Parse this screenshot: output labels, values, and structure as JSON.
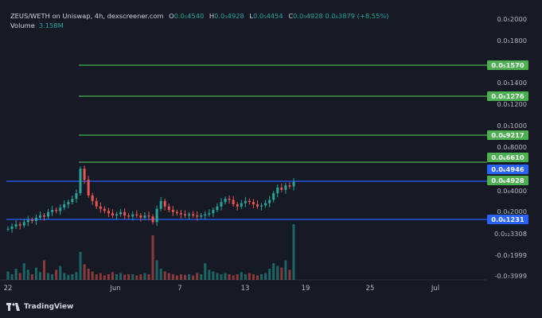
{
  "header": {
    "pair": "ZEUS/WETH on Uniswap, 4h, dexscreener.com",
    "open_key": "O",
    "open": "0.0₅4540",
    "high_key": "H",
    "high": "0.0₅4928",
    "low_key": "L",
    "low": "0.0₅4454",
    "close_key": "C",
    "close": "0.0₅4928",
    "change": "0.0₆3879 (+8.55%)"
  },
  "volume": {
    "label": "Volume",
    "value": "3.158M"
  },
  "y_axis_labels": [
    "0.0₅2000",
    "0.0₅1800",
    "0.0₅1400",
    "0.0₅1200",
    "0.0₅1000",
    "0.0₆8000",
    "0.0₆4000",
    "0.0₆2000",
    "0.0₂₂3308",
    "-0.0₇1999",
    "-0.0₇3999"
  ],
  "x_axis_labels": [
    "22",
    "Jun",
    "7",
    "13",
    "19",
    "25",
    "Jul"
  ],
  "levels": {
    "green": [
      "0.0₅1570",
      "0.0₅1276",
      "0.0₆9217",
      "0.0₆6610"
    ],
    "blue_tags": [
      "0.0₆4946",
      "0.0₆4928",
      "0.0₆1231"
    ]
  },
  "brand": "TradingView",
  "colors": {
    "green_line": "#4caf50",
    "blue_line": "#2962ff",
    "up": "#26a69a",
    "down": "#ef5350",
    "bg": "#161a25"
  },
  "chart_data": {
    "type": "candlestick",
    "x": [
      "22",
      "Jun",
      "7",
      "13",
      "19",
      "25",
      "Jul"
    ],
    "horizontal_levels": [
      "0.0₅1570",
      "0.0₅1276",
      "0.0₆9217",
      "0.0₆6610",
      "0.0₆4946",
      "0.0₆1231"
    ],
    "close_series": [
      0.18,
      0.2,
      0.22,
      0.21,
      0.24,
      0.26,
      0.25,
      0.28,
      0.3,
      0.29,
      0.33,
      0.35,
      0.34,
      0.37,
      0.4,
      0.42,
      0.45,
      0.5,
      0.72,
      0.62,
      0.48,
      0.43,
      0.38,
      0.36,
      0.34,
      0.32,
      0.3,
      0.31,
      0.33,
      0.3,
      0.29,
      0.31,
      0.3,
      0.28,
      0.3,
      0.29,
      0.24,
      0.36,
      0.43,
      0.38,
      0.35,
      0.33,
      0.32,
      0.31,
      0.3,
      0.31,
      0.3,
      0.29,
      0.3,
      0.31,
      0.32,
      0.35,
      0.38,
      0.42,
      0.45,
      0.44,
      0.4,
      0.38,
      0.41,
      0.43,
      0.42,
      0.4,
      0.38,
      0.39,
      0.41,
      0.44,
      0.5,
      0.55,
      0.53,
      0.57,
      0.56,
      0.6
    ],
    "volume_series": [
      0.15,
      0.1,
      0.2,
      0.12,
      0.3,
      0.18,
      0.1,
      0.22,
      0.14,
      0.35,
      0.12,
      0.1,
      0.18,
      0.25,
      0.12,
      0.09,
      0.1,
      0.14,
      0.5,
      0.28,
      0.2,
      0.15,
      0.1,
      0.12,
      0.08,
      0.1,
      0.14,
      0.1,
      0.12,
      0.09,
      0.1,
      0.1,
      0.08,
      0.1,
      0.12,
      0.1,
      0.8,
      0.35,
      0.2,
      0.15,
      0.12,
      0.1,
      0.08,
      0.1,
      0.09,
      0.1,
      0.08,
      0.12,
      0.1,
      0.3,
      0.18,
      0.15,
      0.12,
      0.1,
      0.12,
      0.1,
      0.08,
      0.1,
      0.14,
      0.1,
      0.12,
      0.1,
      0.08,
      0.1,
      0.12,
      0.2,
      0.3,
      0.25,
      0.22,
      0.35,
      0.18,
      1.0
    ]
  }
}
